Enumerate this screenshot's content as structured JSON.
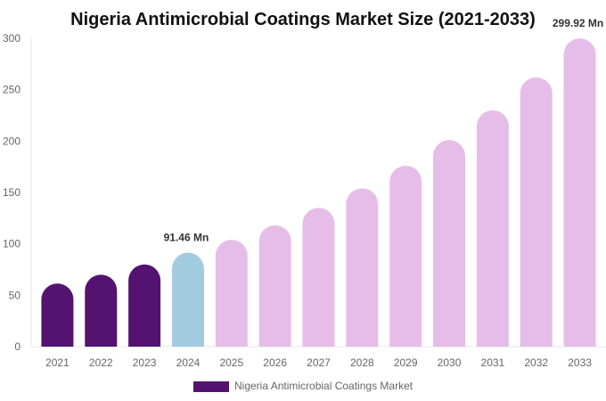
{
  "chart_data": {
    "type": "bar",
    "title": "Nigeria Antimicrobial Coatings Market Size (2021-2033)",
    "categories": [
      "2021",
      "2022",
      "2023",
      "2024",
      "2025",
      "2026",
      "2027",
      "2028",
      "2029",
      "2030",
      "2031",
      "2032",
      "2033"
    ],
    "series": [
      {
        "name": "Nigeria Antimicrobial Coatings Market",
        "values": [
          61.5,
          70,
          80,
          91.46,
          104,
          118,
          135,
          154,
          176,
          201,
          230,
          262,
          299.92
        ]
      }
    ],
    "data_labels": [
      {
        "category": "2024",
        "text": "91.46 Mn"
      },
      {
        "category": "2033",
        "text": "299.92 Mn"
      }
    ],
    "yticks": [
      "0",
      "50",
      "100",
      "150",
      "200",
      "250",
      "300"
    ],
    "ylim": [
      0,
      300
    ],
    "grid": false,
    "legend_position": "bottom",
    "colors": {
      "historical": "#541271",
      "current": "#a3cbdf",
      "forecast": "#e6bde9"
    }
  }
}
